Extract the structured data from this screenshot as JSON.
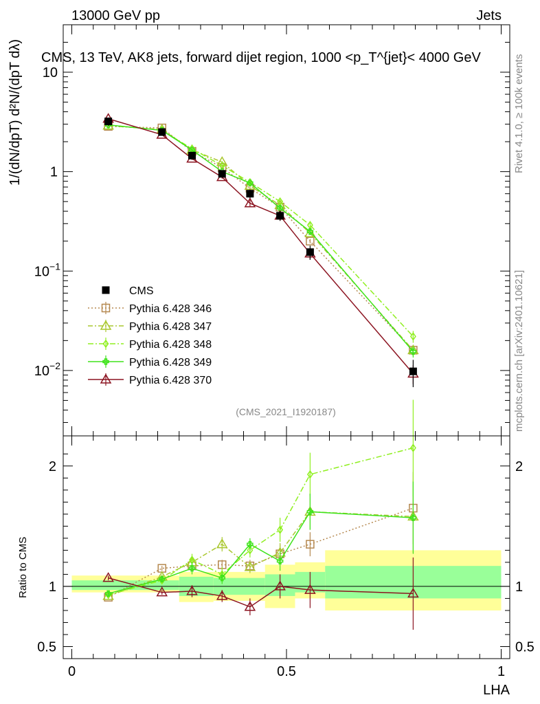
{
  "header": {
    "energy_label": "13000 GeV pp",
    "category_label": "Jets"
  },
  "side": {
    "rivet_label": "Rivet 4.1.0, ≥ 100k events",
    "mcplots_label": "mcplots.cern.ch [arXiv:2401.10621]"
  },
  "colors": {
    "cms": "#000000",
    "p346": "#b5884f",
    "p347": "#a9c72e",
    "p348": "#8fef1f",
    "p349": "#3ee31a",
    "p370": "#8b1320",
    "band_yellow": "#ffff99",
    "band_green": "#99ff99"
  },
  "chart_data": [
    {
      "type": "line",
      "name": "main-distribution",
      "title": "CMS, 13 TeV, AK8 jets, forward dijet region, 1000 <p_T^{jet}< 4000 GeV",
      "ylabel": "1/(dN/dpT) d²N/(dpT dλ)",
      "yscale": "log",
      "ylim": [
        0.0022,
        30
      ],
      "xlim": [
        -0.02,
        1.02
      ],
      "y_ticks": [
        {
          "value": 0.01,
          "base": "10",
          "exp": "−2"
        },
        {
          "value": 0.1,
          "base": "10",
          "exp": "−1"
        },
        {
          "value": 1,
          "base": "1",
          "exp": ""
        },
        {
          "value": 10,
          "base": "10",
          "exp": ""
        }
      ],
      "watermark": "(CMS_2021_I1920187)",
      "x": [
        0.085,
        0.21,
        0.28,
        0.35,
        0.415,
        0.485,
        0.555,
        0.795
      ],
      "series": [
        {
          "key": "cms",
          "name": "CMS",
          "values": [
            3.2,
            2.5,
            1.45,
            0.95,
            0.6,
            0.36,
            0.155,
            0.0098
          ],
          "err": [
            0.3,
            0.2,
            0.12,
            0.08,
            0.06,
            0.04,
            0.025,
            0.003
          ]
        },
        {
          "key": "p346",
          "name": "Pythia 6.428 346",
          "values": [
            2.85,
            2.75,
            1.6,
            1.1,
            0.68,
            0.44,
            0.2,
            0.016
          ],
          "err": [
            0.05,
            0.05,
            0.04,
            0.03,
            0.02,
            0.02,
            0.01,
            0.002
          ]
        },
        {
          "key": "p347",
          "name": "Pythia 6.428 347",
          "values": [
            2.9,
            2.65,
            1.65,
            1.25,
            0.72,
            0.46,
            0.24,
            0.016
          ],
          "err": [
            0.05,
            0.05,
            0.04,
            0.03,
            0.02,
            0.02,
            0.01,
            0.002
          ]
        },
        {
          "key": "p348",
          "name": "Pythia 6.428 348",
          "values": [
            2.95,
            2.6,
            1.7,
            1.15,
            0.78,
            0.5,
            0.29,
            0.022
          ],
          "err": [
            0.05,
            0.05,
            0.04,
            0.03,
            0.02,
            0.02,
            0.015,
            0.003
          ]
        },
        {
          "key": "p349",
          "name": "Pythia 6.428 349",
          "values": [
            2.95,
            2.6,
            1.65,
            1.0,
            0.77,
            0.43,
            0.25,
            0.0155
          ],
          "err": [
            0.05,
            0.05,
            0.04,
            0.03,
            0.02,
            0.02,
            0.015,
            0.002
          ]
        },
        {
          "key": "p370",
          "name": "Pythia 6.428 370",
          "values": [
            3.4,
            2.35,
            1.35,
            0.88,
            0.48,
            0.36,
            0.15,
            0.0093
          ],
          "err": [
            0.06,
            0.05,
            0.04,
            0.03,
            0.04,
            0.04,
            0.02,
            0.002
          ]
        }
      ]
    },
    {
      "type": "line",
      "name": "ratio",
      "ylabel": "Ratio to CMS",
      "xlabel": "LHA",
      "ylim": [
        0.4,
        2.25
      ],
      "xlim": [
        -0.02,
        1.02
      ],
      "y_ticks": [
        {
          "value": 0.5,
          "label": "0.5"
        },
        {
          "value": 1,
          "label": "1"
        },
        {
          "value": 2,
          "label": "2"
        }
      ],
      "x_ticks": [
        {
          "value": 0,
          "label": "0"
        },
        {
          "value": 0.5,
          "label": "0.5"
        },
        {
          "value": 1,
          "label": "1"
        }
      ],
      "bands": [
        {
          "x0": 0.0,
          "x1": 0.25,
          "yellow": [
            0.95,
            1.09
          ],
          "green": [
            0.97,
            1.05
          ]
        },
        {
          "x0": 0.25,
          "x1": 0.33,
          "yellow": [
            0.87,
            1.12
          ],
          "green": [
            0.92,
            1.08
          ]
        },
        {
          "x0": 0.33,
          "x1": 0.45,
          "yellow": [
            0.88,
            1.12
          ],
          "green": [
            0.93,
            1.07
          ]
        },
        {
          "x0": 0.45,
          "x1": 0.52,
          "yellow": [
            0.82,
            1.18
          ],
          "green": [
            0.92,
            1.1
          ]
        },
        {
          "x0": 0.52,
          "x1": 0.59,
          "yellow": [
            0.9,
            1.2
          ],
          "green": [
            0.95,
            1.12
          ]
        },
        {
          "x0": 0.59,
          "x1": 1.0,
          "yellow": [
            0.8,
            1.3
          ],
          "green": [
            0.9,
            1.17
          ]
        }
      ],
      "x": [
        0.085,
        0.21,
        0.28,
        0.35,
        0.415,
        0.485,
        0.555,
        0.795
      ],
      "series": [
        {
          "key": "p346",
          "name": "Pythia 6.428 346",
          "values": [
            0.91,
            1.15,
            1.17,
            1.18,
            1.17,
            1.27,
            1.35,
            1.65
          ],
          "err": [
            0.02,
            0.02,
            0.04,
            0.04,
            0.05,
            0.08,
            0.1,
            0.3
          ]
        },
        {
          "key": "p347",
          "name": "Pythia 6.428 347",
          "values": [
            0.92,
            1.08,
            1.2,
            1.35,
            1.16,
            1.28,
            1.62,
            1.58
          ],
          "err": [
            0.02,
            0.02,
            0.05,
            0.06,
            0.05,
            0.08,
            0.15,
            0.3
          ]
        },
        {
          "key": "p348",
          "name": "Pythia 6.428 348",
          "values": [
            0.93,
            1.05,
            1.22,
            1.1,
            1.3,
            1.47,
            1.93,
            2.15
          ],
          "err": [
            0.02,
            0.02,
            0.05,
            0.06,
            0.06,
            0.1,
            0.18,
            0.4
          ]
        },
        {
          "key": "p349",
          "name": "Pythia 6.428 349",
          "values": [
            0.94,
            1.06,
            1.15,
            1.07,
            1.35,
            1.21,
            1.62,
            1.57
          ],
          "err": [
            0.02,
            0.02,
            0.05,
            0.05,
            0.05,
            0.08,
            0.15,
            0.3
          ]
        },
        {
          "key": "p370",
          "name": "Pythia 6.428 370",
          "values": [
            1.07,
            0.95,
            0.96,
            0.92,
            0.83,
            1.0,
            0.97,
            0.94
          ],
          "err": [
            0.02,
            0.02,
            0.05,
            0.05,
            0.07,
            0.1,
            0.15,
            0.3
          ]
        }
      ]
    }
  ]
}
